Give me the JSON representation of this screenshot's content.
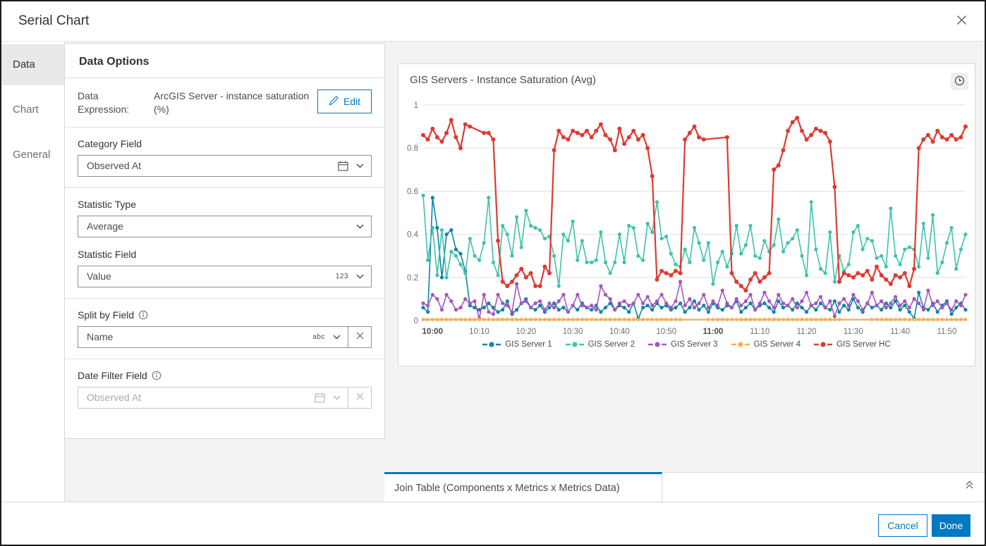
{
  "dialog": {
    "title": "Serial Chart"
  },
  "sidebar": {
    "items": [
      {
        "label": "Data",
        "selected": true
      },
      {
        "label": "Chart",
        "selected": false
      },
      {
        "label": "General",
        "selected": false
      }
    ]
  },
  "options": {
    "title": "Data Options",
    "expression": {
      "label": "Data Expression:",
      "value": "ArcGIS Server - instance saturation (%)",
      "edit": "Edit"
    },
    "category_field": {
      "label": "Category Field",
      "value": "Observed At"
    },
    "statistic_type": {
      "label": "Statistic Type",
      "value": "Average"
    },
    "statistic_field": {
      "label": "Statistic Field",
      "value": "Value",
      "type_glyph": "123"
    },
    "split_by_field": {
      "label": "Split by Field",
      "value": "Name",
      "type_glyph": "abc"
    },
    "date_filter_field": {
      "label": "Date Filter Field",
      "value": "Observed At",
      "disabled": true
    }
  },
  "chart_data": {
    "type": "line",
    "title": "GIS Servers - Instance Saturation (Avg)",
    "x_start": "09:58",
    "x_interval_minutes": 1,
    "points_per_series": 117,
    "ylim": [
      0,
      1
    ],
    "y_ticks": [
      0,
      0.2,
      0.4,
      0.6,
      0.8,
      1
    ],
    "y_tick_labels": [
      "0",
      "0.2",
      "0.4",
      "0.6",
      "0.8",
      "1"
    ],
    "grid": true,
    "legend_position": "bottom",
    "x_ticks": [
      {
        "index": 2,
        "label": "10:00",
        "bold": true
      },
      {
        "index": 12,
        "label": "10:10",
        "bold": false
      },
      {
        "index": 22,
        "label": "10:20",
        "bold": false
      },
      {
        "index": 32,
        "label": "10:30",
        "bold": false
      },
      {
        "index": 42,
        "label": "10:40",
        "bold": false
      },
      {
        "index": 52,
        "label": "10:50",
        "bold": false
      },
      {
        "index": 62,
        "label": "11:00",
        "bold": true
      },
      {
        "index": 72,
        "label": "11:10",
        "bold": false
      },
      {
        "index": 82,
        "label": "11:20",
        "bold": false
      },
      {
        "index": 92,
        "label": "11:30",
        "bold": false
      },
      {
        "index": 102,
        "label": "11:40",
        "bold": false
      },
      {
        "index": 112,
        "label": "11:50",
        "bold": false
      }
    ],
    "series": [
      {
        "name": "GIS Server 1",
        "color": "#0f84a6",
        "line_width": 1.6,
        "dot_r": 2.6,
        "values": [
          0.06,
          0.04,
          0.57,
          0.43,
          0.2,
          0.4,
          0.42,
          0.33,
          0.31,
          0.23,
          0.07,
          0.06,
          0.05,
          0.06,
          0.08,
          0.06,
          0.04,
          0.05,
          0.09,
          0.03,
          0.05,
          0.08,
          0.1,
          0.06,
          0.05,
          0.07,
          0.04,
          0.06,
          0.08,
          0.05,
          0.06,
          0.04,
          0.07,
          0.05,
          0.08,
          0.06,
          0.05,
          0.07,
          0.04,
          0.06,
          0.08,
          0.05,
          0.07,
          0.06,
          0.04,
          0.08,
          0.01,
          0.06,
          0.07,
          0.05,
          0.08,
          0.06,
          0.07,
          0.05,
          0.06,
          0.08,
          0.04,
          0.06,
          0.09,
          0.05,
          0.07,
          0.04,
          0.08,
          0.06,
          0.05,
          0.07,
          0.06,
          0.09,
          0.04,
          0.06,
          0.08,
          0.05,
          0.07,
          0.08,
          0.06,
          0.04,
          0.09,
          0.06,
          0.07,
          0.05,
          0.08,
          0.06,
          0.04,
          0.07,
          0.05,
          0.08,
          0.06,
          0.05,
          0.09,
          0.04,
          0.07,
          0.05,
          0.1,
          0.06,
          0.04,
          0.08,
          0.06,
          0.07,
          0.05,
          0.08,
          0.06,
          0.09,
          0.05,
          0.07,
          0.04,
          0.01,
          0.13,
          0.06,
          0.05,
          0.08,
          0.04,
          0.07,
          0.09,
          0.03,
          0.06,
          0.08,
          0.05
        ]
      },
      {
        "name": "GIS Server 2",
        "color": "#3ec3ab",
        "line_width": 1.6,
        "dot_r": 2.6,
        "values": [
          0.58,
          0.28,
          0.43,
          0.21,
          0.42,
          0.2,
          0.32,
          0.3,
          0.26,
          0.22,
          0.38,
          0.3,
          0.28,
          0.36,
          0.57,
          0.27,
          0.21,
          0.44,
          0.4,
          0.3,
          0.48,
          0.34,
          0.51,
          0.44,
          0.43,
          0.42,
          0.38,
          0.39,
          0.3,
          0.16,
          0.4,
          0.37,
          0.46,
          0.28,
          0.37,
          0.27,
          0.27,
          0.28,
          0.41,
          0.27,
          0.22,
          0.27,
          0.4,
          0.27,
          0.44,
          0.43,
          0.3,
          0.28,
          0.45,
          0.41,
          0.55,
          0.38,
          0.39,
          0.31,
          0.26,
          0.25,
          0.33,
          0.27,
          0.43,
          0.36,
          0.28,
          0.36,
          0.17,
          0.27,
          0.32,
          0.25,
          0.31,
          0.44,
          0.31,
          0.35,
          0.44,
          0.3,
          0.29,
          0.37,
          0.32,
          0.35,
          0.47,
          0.32,
          0.36,
          0.38,
          0.42,
          0.3,
          0.21,
          0.55,
          0.33,
          0.24,
          0.22,
          0.41,
          0.18,
          0.3,
          0.23,
          0.26,
          0.41,
          0.44,
          0.33,
          0.38,
          0.37,
          0.29,
          0.3,
          0.25,
          0.52,
          0.3,
          0.26,
          0.33,
          0.34,
          0.33,
          0.25,
          0.45,
          0.29,
          0.49,
          0.22,
          0.27,
          0.36,
          0.43,
          0.24,
          0.33,
          0.4
        ]
      },
      {
        "name": "GIS Server 3",
        "color": "#a455be",
        "line_width": 1.6,
        "dot_r": 2.6,
        "values": [
          0.08,
          0.07,
          0.12,
          0.1,
          0.05,
          0.12,
          0.09,
          0.05,
          0.06,
          0.1,
          0.08,
          0.09,
          0.01,
          0.12,
          0.04,
          0.03,
          0.12,
          0.08,
          0.07,
          0.04,
          0.17,
          0.08,
          0.09,
          0.06,
          0.08,
          0.09,
          0.05,
          0.08,
          0.06,
          0.09,
          0.12,
          0.04,
          0.07,
          0.12,
          0.07,
          0.06,
          0.07,
          0.05,
          0.16,
          0.12,
          0.1,
          0.05,
          0.08,
          0.09,
          0.07,
          0.08,
          0.12,
          0.08,
          0.11,
          0.07,
          0.09,
          0.12,
          0.08,
          0.06,
          0.09,
          0.18,
          0.07,
          0.1,
          0.06,
          0.08,
          0.12,
          0.06,
          0.09,
          0.07,
          0.14,
          0.08,
          0.06,
          0.1,
          0.07,
          0.09,
          0.12,
          0.05,
          0.08,
          0.13,
          0.09,
          0.06,
          0.12,
          0.08,
          0.07,
          0.1,
          0.06,
          0.09,
          0.13,
          0.07,
          0.08,
          0.11,
          0.06,
          0.09,
          0.02,
          0.08,
          0.1,
          0.07,
          0.12,
          0.09,
          0.05,
          0.08,
          0.13,
          0.07,
          0.09,
          0.06,
          0.08,
          0.11,
          0.07,
          0.09,
          0.06,
          0.1,
          0.08,
          0.05,
          0.14,
          0.07,
          0.09,
          0.06,
          0.08,
          0.05,
          0.09,
          0.07,
          0.12
        ]
      },
      {
        "name": "GIS Server 4",
        "color": "#f8ae51",
        "line_width": 2,
        "dot_r": 2.4,
        "values": [
          0.005,
          0.005,
          0.005,
          0.005,
          0.005,
          0.005,
          0.005,
          0.005,
          0.005,
          0.005,
          0.005,
          0.005,
          0.005,
          0.005,
          0.005,
          0.005,
          0.005,
          0.005,
          0.005,
          0.005,
          0.005,
          0.005,
          0.005,
          0.005,
          0.005,
          0.005,
          0.005,
          0.005,
          0.005,
          0.005,
          0.005,
          0.005,
          0.005,
          0.005,
          0.005,
          0.005,
          0.005,
          0.005,
          0.005,
          0.005,
          0.005,
          0.005,
          0.005,
          0.005,
          0.005,
          0.005,
          0.005,
          0.005,
          0.005,
          0.005,
          0.005,
          0.005,
          0.005,
          0.005,
          0.005,
          0.005,
          null,
          null,
          null,
          null,
          null,
          0.005,
          0.005,
          0.005,
          0.005,
          0.005,
          0.005,
          0.005,
          0.005,
          0.005,
          0.005,
          0.005,
          0.005,
          0.005,
          0.005,
          0.005,
          0.005,
          0.005,
          0.005,
          0.005,
          0.005,
          0.005,
          0.005,
          0.005,
          0.005,
          0.005,
          0.005,
          0.005,
          0.005,
          0.005,
          null,
          null,
          null,
          null,
          null,
          null,
          0.005,
          0.005,
          0.005,
          0.005,
          0.005,
          0.005,
          0.005,
          0.005,
          0.005,
          0.005,
          0.005,
          0.005,
          0.005,
          0.005,
          0.005,
          0.005,
          0.005,
          0.005,
          0.005,
          0.005,
          0.005
        ]
      },
      {
        "name": "GIS Server HC",
        "color": "#de3a32",
        "line_width": 2.2,
        "dot_r": 3,
        "values": [
          0.86,
          0.84,
          0.89,
          0.85,
          0.83,
          0.87,
          0.93,
          0.85,
          0.8,
          0.91,
          0.9,
          null,
          null,
          0.87,
          0.87,
          0.84,
          0.37,
          0.18,
          0.16,
          0.18,
          0.21,
          0.24,
          0.2,
          0.22,
          0.16,
          0.16,
          0.25,
          0.22,
          0.79,
          0.88,
          0.85,
          0.84,
          0.88,
          0.87,
          0.86,
          0.88,
          0.85,
          0.88,
          0.91,
          0.86,
          0.84,
          0.79,
          0.89,
          0.82,
          0.85,
          0.88,
          0.84,
          0.86,
          0.8,
          0.67,
          0.19,
          0.23,
          0.22,
          0.21,
          0.23,
          0.22,
          0.84,
          0.87,
          0.9,
          0.85,
          0.84,
          null,
          null,
          null,
          null,
          0.85,
          0.22,
          0.18,
          0.16,
          0.14,
          0.19,
          0.22,
          0.18,
          0.2,
          0.22,
          0.7,
          0.72,
          0.79,
          0.88,
          0.92,
          0.94,
          0.88,
          0.84,
          0.86,
          0.89,
          0.88,
          0.87,
          0.83,
          0.62,
          0.18,
          0.22,
          0.21,
          0.2,
          0.22,
          0.21,
          0.23,
          0.19,
          0.25,
          0.21,
          0.19,
          0.17,
          0.21,
          0.2,
          0.22,
          0.16,
          0.24,
          0.8,
          0.84,
          0.86,
          0.83,
          0.88,
          0.85,
          0.84,
          0.86,
          0.84,
          0.85,
          0.9
        ]
      }
    ]
  },
  "bottom_tabs": {
    "join_table": "Join Table (Components x Metrics x Metrics Data)"
  },
  "footer": {
    "cancel": "Cancel",
    "done": "Done"
  },
  "colors": {
    "accent": "#0079c1"
  }
}
